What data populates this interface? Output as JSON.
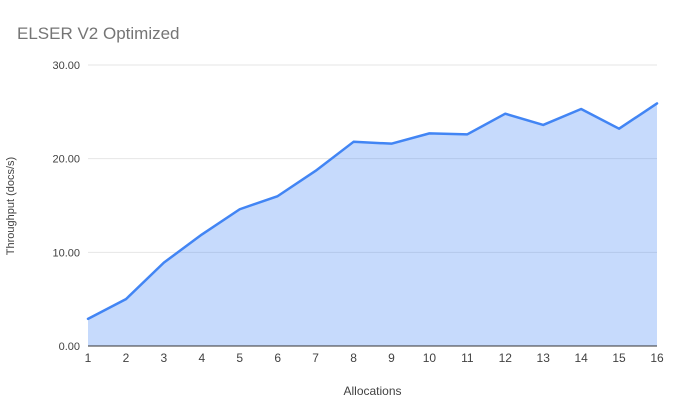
{
  "chart_data": {
    "type": "area",
    "title": "ELSER V2 Optimized",
    "xlabel": "Allocations",
    "ylabel": "Throughput (docs/s)",
    "categories": [
      "1",
      "2",
      "3",
      "4",
      "5",
      "6",
      "7",
      "8",
      "9",
      "10",
      "11",
      "12",
      "13",
      "14",
      "15",
      "16"
    ],
    "values": [
      2.9,
      5.0,
      8.9,
      11.9,
      14.6,
      16.0,
      18.7,
      21.8,
      21.6,
      22.7,
      22.6,
      24.8,
      23.6,
      25.3,
      23.2,
      25.9
    ],
    "ylim": [
      0,
      30
    ],
    "y_ticks": [
      0,
      10,
      20,
      30
    ],
    "y_tick_labels": [
      "0.00",
      "10.00",
      "20.00",
      "30.00"
    ],
    "grid": true,
    "legend_position": "none",
    "colors": {
      "line": "#4285f4",
      "area_fill": "#4285f4",
      "area_opacity": 0.3,
      "gridline": "#e6e6e6",
      "axis_line": "#333333",
      "tick_text": "#424242",
      "title_text": "#757575",
      "background": "#ffffff"
    }
  }
}
